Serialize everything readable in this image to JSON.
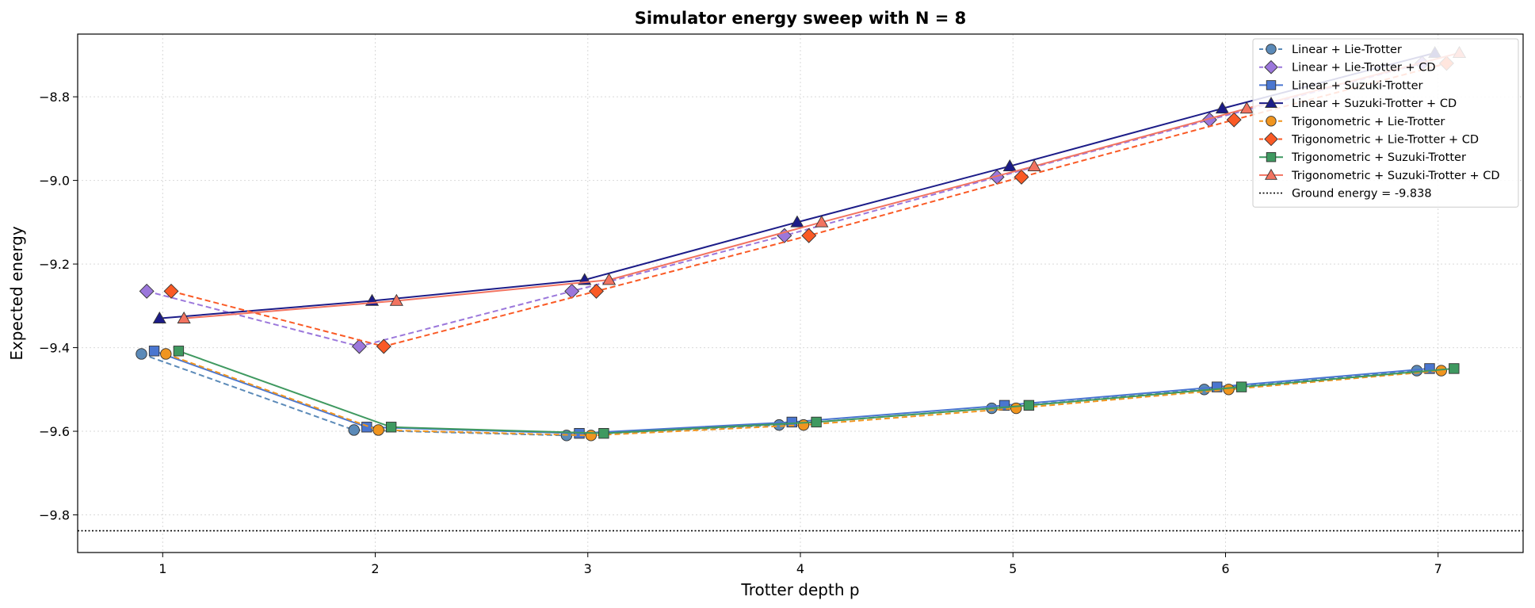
{
  "chart_data": {
    "type": "line",
    "title": "Simulator energy sweep with N = 8",
    "xlabel": "Trotter depth p",
    "ylabel": "Expected energy",
    "x": [
      1,
      2,
      3,
      4,
      5,
      6,
      7
    ],
    "xlim": [
      0.6,
      7.4
    ],
    "ylim": [
      -9.89,
      -8.65
    ],
    "xticks": [
      "1",
      "2",
      "3",
      "4",
      "5",
      "6",
      "7"
    ],
    "yticks": [
      -9.8,
      -9.6,
      -9.4,
      -9.2,
      -9.0,
      -8.8
    ],
    "ytick_labels": [
      "−9.8",
      "−9.6",
      "−9.4",
      "−9.2",
      "−9.0",
      "−8.8"
    ],
    "grid": true,
    "legend_position": "top-right",
    "series": [
      {
        "name": "Linear + Lie-Trotter",
        "color": "#5b8ab8",
        "marker": "circle",
        "dash": "dashed",
        "x_offset": -0.1,
        "values": [
          -9.415,
          -9.597,
          -9.61,
          -9.585,
          -9.545,
          -9.5,
          -9.455
        ]
      },
      {
        "name": "Linear + Lie-Trotter + CD",
        "color": "#9b77db",
        "marker": "diamond",
        "dash": "dashed",
        "x_offset": -0.075,
        "values": [
          -9.265,
          -9.397,
          -9.265,
          -9.132,
          -8.992,
          -8.855,
          -8.72
        ]
      },
      {
        "name": "Linear + Suzuki-Trotter",
        "color": "#4a76d0",
        "marker": "square",
        "dash": "solid",
        "x_offset": -0.04,
        "values": [
          -9.408,
          -9.59,
          -9.605,
          -9.578,
          -9.538,
          -9.494,
          -9.45
        ]
      },
      {
        "name": "Linear + Suzuki-Trotter + CD",
        "color": "#1c1c88",
        "marker": "triangle",
        "dash": "solid",
        "x_offset": -0.015,
        "values": [
          -9.33,
          -9.288,
          -9.238,
          -9.1,
          -8.966,
          -8.828,
          -8.695
        ]
      },
      {
        "name": "Trigonometric + Lie-Trotter",
        "color": "#f0951f",
        "marker": "circle",
        "dash": "dashed",
        "x_offset": 0.015,
        "values": [
          -9.415,
          -9.597,
          -9.61,
          -9.585,
          -9.545,
          -9.5,
          -9.455
        ]
      },
      {
        "name": "Trigonometric + Lie-Trotter + CD",
        "color": "#fa5a25",
        "marker": "diamond",
        "dash": "dashed",
        "x_offset": 0.04,
        "values": [
          -9.265,
          -9.397,
          -9.265,
          -9.132,
          -8.992,
          -8.855,
          -8.72
        ]
      },
      {
        "name": "Trigonometric + Suzuki-Trotter",
        "color": "#3f9960",
        "marker": "square",
        "dash": "solid",
        "x_offset": 0.075,
        "values": [
          -9.408,
          -9.59,
          -9.605,
          -9.578,
          -9.538,
          -9.494,
          -9.45
        ]
      },
      {
        "name": "Trigonometric + Suzuki-Trotter + CD",
        "color": "#f27360",
        "marker": "triangle",
        "dash": "solid",
        "x_offset": 0.1,
        "values": [
          -9.33,
          -9.288,
          -9.238,
          -9.1,
          -8.966,
          -8.828,
          -8.695
        ]
      }
    ],
    "reference_line": {
      "name": "Ground energy = -9.838",
      "value": -9.838,
      "color": "#000000",
      "style": "dotted"
    }
  }
}
